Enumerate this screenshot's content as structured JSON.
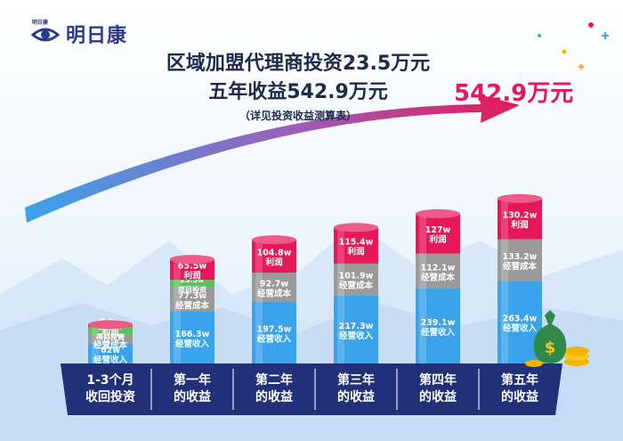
{
  "brand": {
    "logo_small": "明日康",
    "name": "明日康"
  },
  "headline": {
    "line1": "区域加盟代理商投资23.5万元",
    "line2": "五年收益542.9万元",
    "line3": "（详见投资收益测算表）"
  },
  "total_label": "542.9万元",
  "colors": {
    "revenue": "#3aa3ea",
    "cost": "#9a9a9a",
    "investment": "#5cc25c",
    "profit": "#e6185a",
    "footer": "#22307a"
  },
  "chart_data": {
    "type": "bar",
    "stacked": true,
    "categories": [
      "1-3个月 收回投资",
      "第一年 的收益",
      "第二年 的收益",
      "第三年 的收益",
      "第四年 的收益",
      "第五年 的收益"
    ],
    "category_lines": [
      [
        "1-3个月",
        "收回投资"
      ],
      [
        "第一年",
        "的收益"
      ],
      [
        "第二年",
        "的收益"
      ],
      [
        "第三年",
        "的收益"
      ],
      [
        "第四年",
        "的收益"
      ],
      [
        "第五年",
        "的收益"
      ]
    ],
    "series": [
      {
        "name": "经营收入",
        "values": [
          62,
          166.3,
          197.5,
          217.3,
          239.1,
          263.4
        ],
        "value_labels": [
          "62w",
          "166.3w",
          "197.5w",
          "217.3w",
          "239.1w",
          "263.4w"
        ]
      },
      {
        "name": "经营成本",
        "values": [
          31.6,
          77.3,
          92.7,
          101.9,
          112.1,
          133.2
        ],
        "value_labels": [
          "31.6w",
          "77.3w",
          "92.7w",
          "101.9w",
          "112.1w",
          "133.2w"
        ]
      },
      {
        "name": "项目投资",
        "values": [
          23.5,
          23.5,
          null,
          null,
          null,
          null
        ],
        "value_labels": [
          "23.5w",
          "23.5w",
          "",
          "",
          "",
          ""
        ]
      },
      {
        "name": "利润",
        "values": [
          6.9,
          65.5,
          104.8,
          115.4,
          127,
          130.2
        ],
        "value_labels": [
          "6.9w",
          "65.5w",
          "104.8w",
          "115.4w",
          "127w",
          "130.2w"
        ]
      }
    ],
    "total_profit": 542.9,
    "legend": "none",
    "grid": false
  }
}
